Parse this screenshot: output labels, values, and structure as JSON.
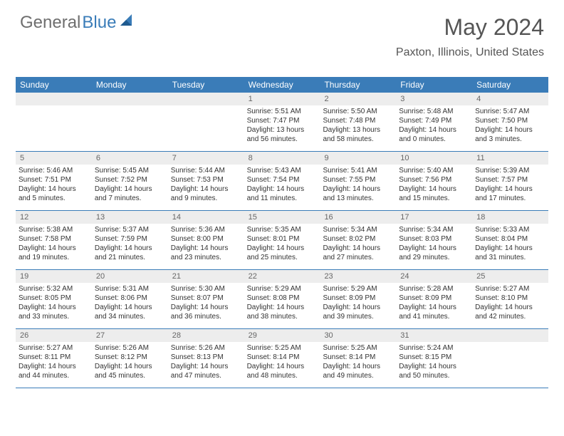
{
  "logo": {
    "text1": "General",
    "text2": "Blue"
  },
  "header": {
    "month_title": "May 2024",
    "location": "Paxton, Illinois, United States"
  },
  "weekdays": [
    "Sunday",
    "Monday",
    "Tuesday",
    "Wednesday",
    "Thursday",
    "Friday",
    "Saturday"
  ],
  "colors": {
    "header_bg": "#3a7cb8",
    "header_text": "#ffffff",
    "daynum_bg": "#ededed",
    "row_border": "#3a7cb8"
  },
  "weeks": [
    [
      {
        "n": "",
        "sr": "",
        "ss": "",
        "dl": ""
      },
      {
        "n": "",
        "sr": "",
        "ss": "",
        "dl": ""
      },
      {
        "n": "",
        "sr": "",
        "ss": "",
        "dl": ""
      },
      {
        "n": "1",
        "sr": "Sunrise: 5:51 AM",
        "ss": "Sunset: 7:47 PM",
        "dl": "Daylight: 13 hours and 56 minutes."
      },
      {
        "n": "2",
        "sr": "Sunrise: 5:50 AM",
        "ss": "Sunset: 7:48 PM",
        "dl": "Daylight: 13 hours and 58 minutes."
      },
      {
        "n": "3",
        "sr": "Sunrise: 5:48 AM",
        "ss": "Sunset: 7:49 PM",
        "dl": "Daylight: 14 hours and 0 minutes."
      },
      {
        "n": "4",
        "sr": "Sunrise: 5:47 AM",
        "ss": "Sunset: 7:50 PM",
        "dl": "Daylight: 14 hours and 3 minutes."
      }
    ],
    [
      {
        "n": "5",
        "sr": "Sunrise: 5:46 AM",
        "ss": "Sunset: 7:51 PM",
        "dl": "Daylight: 14 hours and 5 minutes."
      },
      {
        "n": "6",
        "sr": "Sunrise: 5:45 AM",
        "ss": "Sunset: 7:52 PM",
        "dl": "Daylight: 14 hours and 7 minutes."
      },
      {
        "n": "7",
        "sr": "Sunrise: 5:44 AM",
        "ss": "Sunset: 7:53 PM",
        "dl": "Daylight: 14 hours and 9 minutes."
      },
      {
        "n": "8",
        "sr": "Sunrise: 5:43 AM",
        "ss": "Sunset: 7:54 PM",
        "dl": "Daylight: 14 hours and 11 minutes."
      },
      {
        "n": "9",
        "sr": "Sunrise: 5:41 AM",
        "ss": "Sunset: 7:55 PM",
        "dl": "Daylight: 14 hours and 13 minutes."
      },
      {
        "n": "10",
        "sr": "Sunrise: 5:40 AM",
        "ss": "Sunset: 7:56 PM",
        "dl": "Daylight: 14 hours and 15 minutes."
      },
      {
        "n": "11",
        "sr": "Sunrise: 5:39 AM",
        "ss": "Sunset: 7:57 PM",
        "dl": "Daylight: 14 hours and 17 minutes."
      }
    ],
    [
      {
        "n": "12",
        "sr": "Sunrise: 5:38 AM",
        "ss": "Sunset: 7:58 PM",
        "dl": "Daylight: 14 hours and 19 minutes."
      },
      {
        "n": "13",
        "sr": "Sunrise: 5:37 AM",
        "ss": "Sunset: 7:59 PM",
        "dl": "Daylight: 14 hours and 21 minutes."
      },
      {
        "n": "14",
        "sr": "Sunrise: 5:36 AM",
        "ss": "Sunset: 8:00 PM",
        "dl": "Daylight: 14 hours and 23 minutes."
      },
      {
        "n": "15",
        "sr": "Sunrise: 5:35 AM",
        "ss": "Sunset: 8:01 PM",
        "dl": "Daylight: 14 hours and 25 minutes."
      },
      {
        "n": "16",
        "sr": "Sunrise: 5:34 AM",
        "ss": "Sunset: 8:02 PM",
        "dl": "Daylight: 14 hours and 27 minutes."
      },
      {
        "n": "17",
        "sr": "Sunrise: 5:34 AM",
        "ss": "Sunset: 8:03 PM",
        "dl": "Daylight: 14 hours and 29 minutes."
      },
      {
        "n": "18",
        "sr": "Sunrise: 5:33 AM",
        "ss": "Sunset: 8:04 PM",
        "dl": "Daylight: 14 hours and 31 minutes."
      }
    ],
    [
      {
        "n": "19",
        "sr": "Sunrise: 5:32 AM",
        "ss": "Sunset: 8:05 PM",
        "dl": "Daylight: 14 hours and 33 minutes."
      },
      {
        "n": "20",
        "sr": "Sunrise: 5:31 AM",
        "ss": "Sunset: 8:06 PM",
        "dl": "Daylight: 14 hours and 34 minutes."
      },
      {
        "n": "21",
        "sr": "Sunrise: 5:30 AM",
        "ss": "Sunset: 8:07 PM",
        "dl": "Daylight: 14 hours and 36 minutes."
      },
      {
        "n": "22",
        "sr": "Sunrise: 5:29 AM",
        "ss": "Sunset: 8:08 PM",
        "dl": "Daylight: 14 hours and 38 minutes."
      },
      {
        "n": "23",
        "sr": "Sunrise: 5:29 AM",
        "ss": "Sunset: 8:09 PM",
        "dl": "Daylight: 14 hours and 39 minutes."
      },
      {
        "n": "24",
        "sr": "Sunrise: 5:28 AM",
        "ss": "Sunset: 8:09 PM",
        "dl": "Daylight: 14 hours and 41 minutes."
      },
      {
        "n": "25",
        "sr": "Sunrise: 5:27 AM",
        "ss": "Sunset: 8:10 PM",
        "dl": "Daylight: 14 hours and 42 minutes."
      }
    ],
    [
      {
        "n": "26",
        "sr": "Sunrise: 5:27 AM",
        "ss": "Sunset: 8:11 PM",
        "dl": "Daylight: 14 hours and 44 minutes."
      },
      {
        "n": "27",
        "sr": "Sunrise: 5:26 AM",
        "ss": "Sunset: 8:12 PM",
        "dl": "Daylight: 14 hours and 45 minutes."
      },
      {
        "n": "28",
        "sr": "Sunrise: 5:26 AM",
        "ss": "Sunset: 8:13 PM",
        "dl": "Daylight: 14 hours and 47 minutes."
      },
      {
        "n": "29",
        "sr": "Sunrise: 5:25 AM",
        "ss": "Sunset: 8:14 PM",
        "dl": "Daylight: 14 hours and 48 minutes."
      },
      {
        "n": "30",
        "sr": "Sunrise: 5:25 AM",
        "ss": "Sunset: 8:14 PM",
        "dl": "Daylight: 14 hours and 49 minutes."
      },
      {
        "n": "31",
        "sr": "Sunrise: 5:24 AM",
        "ss": "Sunset: 8:15 PM",
        "dl": "Daylight: 14 hours and 50 minutes."
      },
      {
        "n": "",
        "sr": "",
        "ss": "",
        "dl": ""
      }
    ]
  ]
}
